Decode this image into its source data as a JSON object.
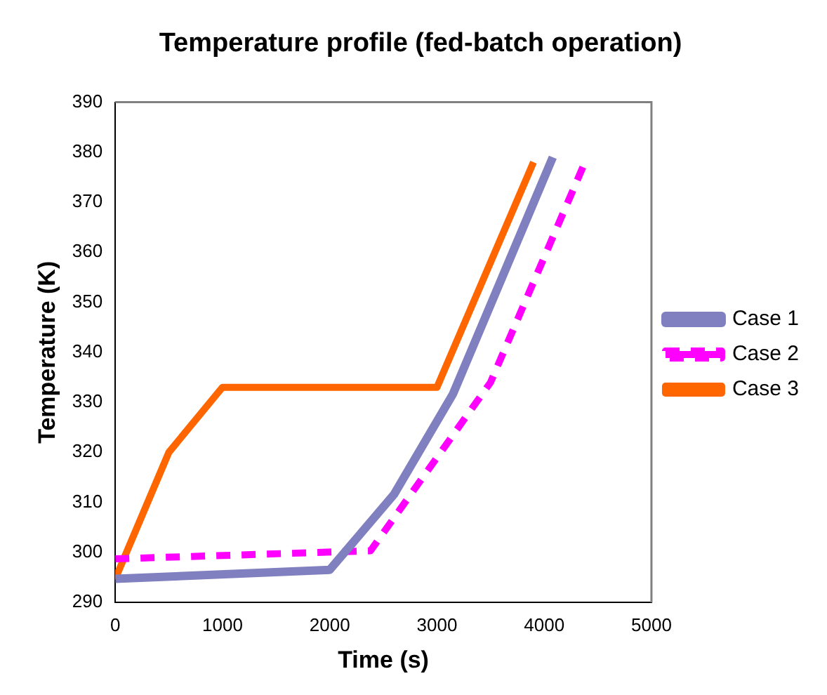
{
  "chart_data": {
    "type": "line",
    "title": "Temperature profile (fed-batch operation)",
    "xlabel": "Time (s)",
    "ylabel": "Temperature (K)",
    "xlim": [
      0,
      5000
    ],
    "xticks": [
      0,
      1000,
      2000,
      3000,
      4000,
      5000
    ],
    "ylim": [
      290,
      390
    ],
    "yticks": [
      290,
      300,
      310,
      320,
      330,
      340,
      350,
      360,
      370,
      380,
      390
    ],
    "grid": false,
    "legend": "right",
    "marker": "none",
    "series": [
      {
        "name": "Case 1",
        "color": "#8080c0",
        "line_style": "solid",
        "x": [
          0,
          2000,
          2600,
          3150,
          4080
        ],
        "values": [
          294.7,
          296.5,
          311.6,
          331.7,
          379
        ]
      },
      {
        "name": "Case 2",
        "color": "#ff00ff",
        "line_style": "dashed",
        "x": [
          0,
          2380,
          3500,
          4370
        ],
        "values": [
          298.7,
          300.3,
          334,
          377.5
        ]
      },
      {
        "name": "Case 3",
        "color": "#ff6600",
        "line_style": "solid",
        "x": [
          0,
          500,
          1000,
          3000,
          3900
        ],
        "values": [
          294.7,
          320,
          333,
          333,
          378
        ]
      }
    ]
  }
}
